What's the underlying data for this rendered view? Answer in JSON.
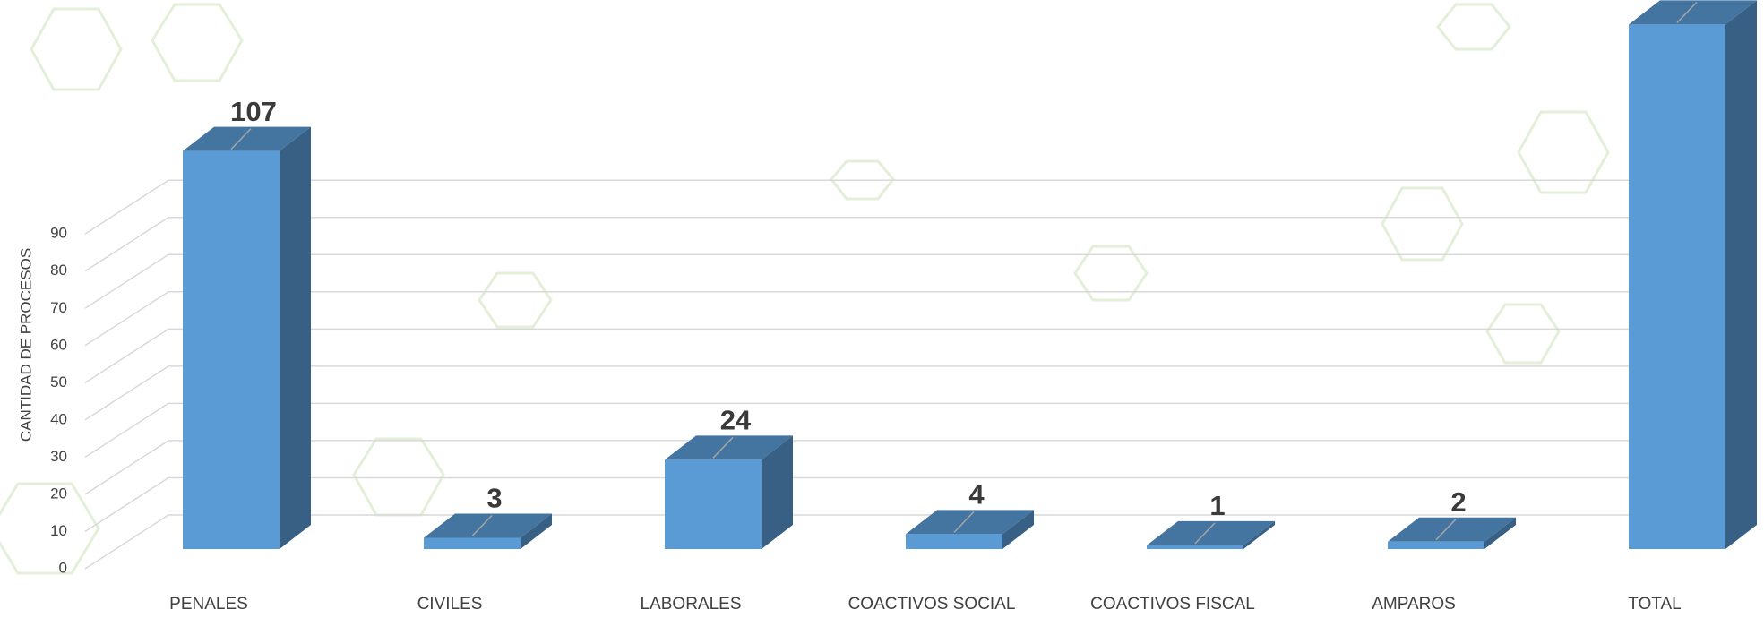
{
  "chart_data": {
    "type": "bar3d",
    "y_label": "CANTIDAD DE PROCESOS",
    "categories": [
      "PENALES",
      "CIVILES",
      "LABORALES",
      "COACTIVOS SOCIAL",
      "COACTIVOS FISCAL",
      "AMPAROS",
      "TOTAL"
    ],
    "values": [
      107,
      3,
      24,
      4,
      1,
      2,
      141
    ],
    "color": "#5b9bd5",
    "ylim": [
      0,
      150
    ],
    "yticks": [
      0,
      10,
      20,
      30,
      40,
      50,
      60,
      70,
      80,
      90
    ],
    "grid": true
  }
}
